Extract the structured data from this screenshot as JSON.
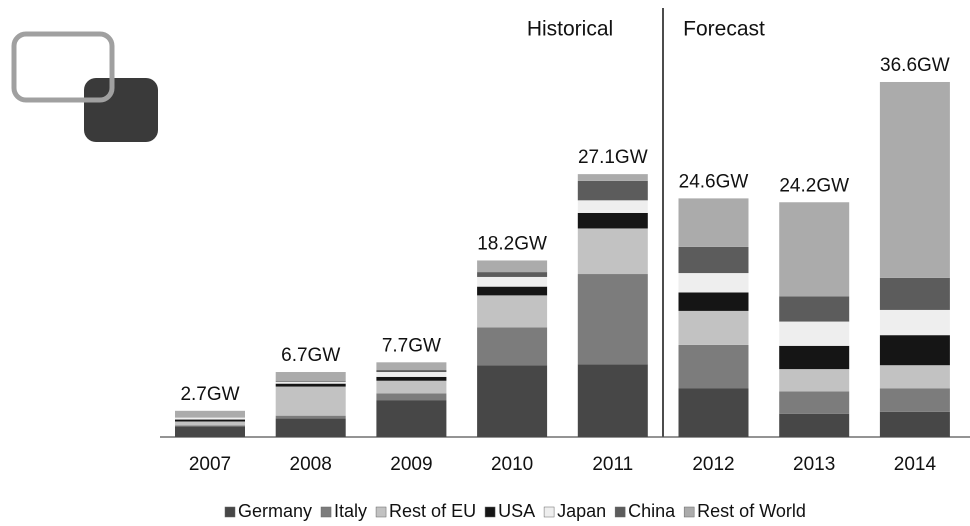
{
  "chart_data": {
    "type": "stacked_bar",
    "categories": [
      "2007",
      "2008",
      "2009",
      "2010",
      "2011",
      "2012",
      "2013",
      "2014"
    ],
    "series": [
      {
        "name": "Germany",
        "color": "#474747",
        "values": [
          1.1,
          1.9,
          3.8,
          7.4,
          7.5,
          5.0,
          2.4,
          2.6
        ]
      },
      {
        "name": "Italy",
        "color": "#7c7c7c",
        "values": [
          0.1,
          0.3,
          0.7,
          3.9,
          9.3,
          4.5,
          2.3,
          2.4
        ]
      },
      {
        "name": "Rest of EU",
        "color": "#c2c2c2",
        "values": [
          0.4,
          3.0,
          1.3,
          3.3,
          4.7,
          3.5,
          2.3,
          2.4
        ]
      },
      {
        "name": "USA",
        "color": "#151515",
        "values": [
          0.2,
          0.3,
          0.4,
          0.9,
          1.6,
          1.9,
          2.4,
          3.1
        ]
      },
      {
        "name": "Japan",
        "color": "#eeeeee",
        "values": [
          0.2,
          0.2,
          0.5,
          1.0,
          1.3,
          2.0,
          2.5,
          2.6
        ]
      },
      {
        "name": "China",
        "color": "#5c5c5c",
        "values": [
          0.0,
          0.1,
          0.2,
          0.5,
          2.0,
          2.7,
          2.6,
          3.3
        ]
      },
      {
        "name": "Rest of World",
        "color": "#ababab",
        "values": [
          0.7,
          0.9,
          0.8,
          1.2,
          0.7,
          5.0,
          9.7,
          20.2
        ]
      }
    ],
    "totals": [
      2.7,
      6.7,
      7.7,
      18.2,
      27.1,
      24.6,
      24.2,
      36.6
    ],
    "total_labels": [
      "2.7GW",
      "6.7GW",
      "7.7GW",
      "18.2GW",
      "27.1GW",
      "24.6GW",
      "24.2GW",
      "36.6GW"
    ],
    "annotations": [
      "Historical",
      "Forecast"
    ],
    "legend": "bottom"
  }
}
